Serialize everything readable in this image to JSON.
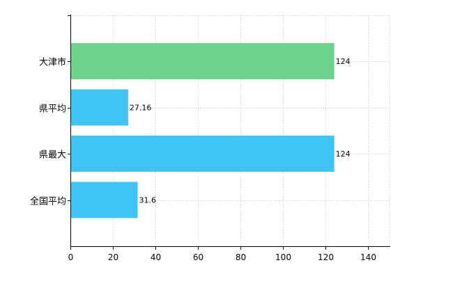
{
  "chart_data": {
    "type": "bar",
    "orientation": "horizontal",
    "categories": [
      "大津市",
      "県平均",
      "県最大",
      "全国平均"
    ],
    "values": [
      124,
      27.16,
      124,
      31.6
    ],
    "data_labels": [
      "124",
      "27.16",
      "124",
      "31.6"
    ],
    "bar_colors": [
      "#6dd38b",
      "#40c4f4",
      "#40c4f4",
      "#40c4f4"
    ],
    "xlim": [
      0,
      150
    ],
    "xticks": [
      0,
      20,
      40,
      60,
      80,
      100,
      120,
      140
    ],
    "grid": true,
    "grid_style": "dotted",
    "legend": "none",
    "title": "",
    "xlabel": "",
    "ylabel": ""
  }
}
